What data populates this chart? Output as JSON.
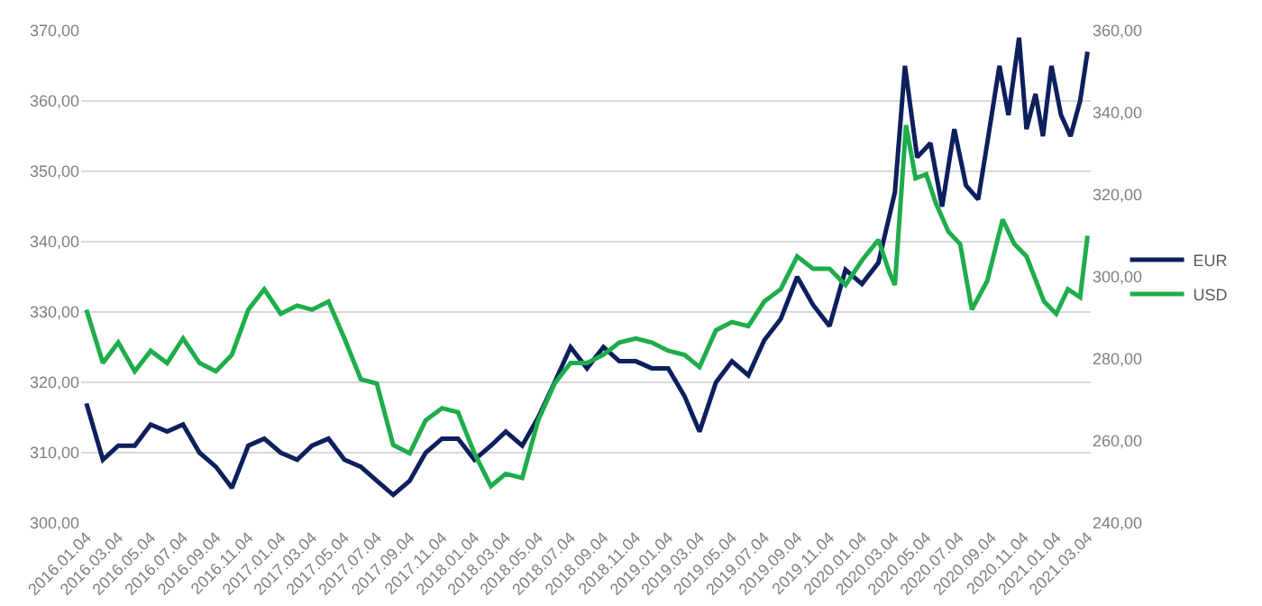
{
  "chart_data": {
    "type": "line",
    "series": [
      {
        "name": "EUR",
        "color": "#0d1f5c",
        "axis": "y",
        "x": [
          "2016-01-04",
          "2016-02-04",
          "2016-03-04",
          "2016-04-04",
          "2016-05-04",
          "2016-06-04",
          "2016-07-04",
          "2016-08-04",
          "2016-09-04",
          "2016-10-04",
          "2016-11-04",
          "2016-12-04",
          "2017-01-04",
          "2017-02-04",
          "2017-03-04",
          "2017-04-04",
          "2017-05-04",
          "2017-06-04",
          "2017-07-04",
          "2017-08-04",
          "2017-09-04",
          "2017-10-04",
          "2017-11-04",
          "2017-12-04",
          "2018-01-04",
          "2018-02-04",
          "2018-03-04",
          "2018-04-04",
          "2018-05-04",
          "2018-06-04",
          "2018-07-04",
          "2018-08-04",
          "2018-09-04",
          "2018-10-04",
          "2018-11-04",
          "2018-12-04",
          "2019-01-04",
          "2019-02-04",
          "2019-03-04",
          "2019-04-04",
          "2019-05-04",
          "2019-06-04",
          "2019-07-04",
          "2019-08-04",
          "2019-09-04",
          "2019-10-04",
          "2019-11-04",
          "2019-12-04",
          "2020-01-04",
          "2020-02-04",
          "2020-03-06",
          "2020-03-25",
          "2020-04-17",
          "2020-05-12",
          "2020-06-03",
          "2020-06-26",
          "2020-07-18",
          "2020-08-10",
          "2020-08-27",
          "2020-09-19",
          "2020-10-06",
          "2020-10-26",
          "2020-11-09",
          "2020-11-26",
          "2020-12-10",
          "2020-12-26",
          "2021-01-13",
          "2021-01-31",
          "2021-02-18",
          "2021-03-04"
        ],
        "values": [
          317,
          309,
          311,
          311,
          314,
          313,
          314,
          310,
          308,
          305,
          311,
          312,
          310,
          309,
          311,
          312,
          309,
          308,
          306,
          304,
          306,
          310,
          312,
          312,
          309,
          311,
          313,
          311,
          315,
          320,
          325,
          322,
          325,
          323,
          323,
          322,
          322,
          318,
          313,
          320,
          323,
          321,
          326,
          329,
          335,
          331,
          328,
          336,
          334,
          337,
          347,
          365,
          352,
          354,
          345,
          356,
          348,
          346,
          354,
          365,
          358,
          369,
          356,
          361,
          355,
          365,
          358,
          355,
          360,
          367
        ]
      },
      {
        "name": "USD",
        "color": "#1fad4b",
        "axis": "y2",
        "x": [
          "2016-01-04",
          "2016-02-04",
          "2016-03-04",
          "2016-04-04",
          "2016-05-04",
          "2016-06-04",
          "2016-07-04",
          "2016-08-04",
          "2016-09-04",
          "2016-10-04",
          "2016-11-04",
          "2016-12-04",
          "2017-01-04",
          "2017-02-04",
          "2017-03-04",
          "2017-04-04",
          "2017-05-04",
          "2017-06-04",
          "2017-07-04",
          "2017-08-04",
          "2017-09-04",
          "2017-10-04",
          "2017-11-04",
          "2017-12-04",
          "2018-01-04",
          "2018-02-04",
          "2018-03-04",
          "2018-04-04",
          "2018-05-04",
          "2018-06-04",
          "2018-07-04",
          "2018-08-04",
          "2018-09-04",
          "2018-10-04",
          "2018-11-04",
          "2018-12-04",
          "2019-01-04",
          "2019-02-04",
          "2019-03-04",
          "2019-04-04",
          "2019-05-04",
          "2019-06-04",
          "2019-07-04",
          "2019-08-04",
          "2019-09-04",
          "2019-10-04",
          "2019-11-04",
          "2019-12-04",
          "2020-01-04",
          "2020-02-04",
          "2020-02-25",
          "2020-03-06",
          "2020-03-27",
          "2020-04-14",
          "2020-05-04",
          "2020-05-22",
          "2020-06-15",
          "2020-07-07",
          "2020-07-29",
          "2020-08-27",
          "2020-09-25",
          "2020-10-17",
          "2020-11-09",
          "2020-12-12",
          "2021-01-04",
          "2021-01-26",
          "2021-02-18",
          "2021-03-04"
        ],
        "values": [
          292,
          279,
          284,
          277,
          282,
          279,
          285,
          279,
          277,
          281,
          292,
          297,
          291,
          293,
          292,
          294,
          285,
          275,
          274,
          259,
          257,
          265,
          268,
          267,
          257,
          249,
          252,
          251,
          265,
          274,
          279,
          279,
          281,
          284,
          285,
          284,
          282,
          281,
          278,
          287,
          289,
          288,
          294,
          297,
          305,
          302,
          302,
          298,
          304,
          309,
          301,
          298,
          337,
          324,
          325,
          318,
          311,
          308,
          292,
          299,
          314,
          308,
          305,
          294,
          291,
          297,
          295,
          310
        ]
      }
    ],
    "xlim": [
      "2015-12-25",
      "2021-03-10"
    ],
    "xticks": [
      {
        "value": "2016-01-04",
        "label": "2016.01.04"
      },
      {
        "value": "2016-03-04",
        "label": "2016.03.04"
      },
      {
        "value": "2016-05-04",
        "label": "2016.05.04"
      },
      {
        "value": "2016-07-04",
        "label": "2016.07.04"
      },
      {
        "value": "2016-09-04",
        "label": "2016.09.04"
      },
      {
        "value": "2016-11-04",
        "label": "2016.11.04"
      },
      {
        "value": "2017-01-04",
        "label": "2017.01.04"
      },
      {
        "value": "2017-03-04",
        "label": "2017.03.04"
      },
      {
        "value": "2017-05-04",
        "label": "2017.05.04"
      },
      {
        "value": "2017-07-04",
        "label": "2017.07.04"
      },
      {
        "value": "2017-09-04",
        "label": "2017.09.04"
      },
      {
        "value": "2017-11-04",
        "label": "2017.11.04"
      },
      {
        "value": "2018-01-04",
        "label": "2018.01.04"
      },
      {
        "value": "2018-03-04",
        "label": "2018.03.04"
      },
      {
        "value": "2018-05-04",
        "label": "2018.05.04"
      },
      {
        "value": "2018-07-04",
        "label": "2018.07.04"
      },
      {
        "value": "2018-09-04",
        "label": "2018.09.04"
      },
      {
        "value": "2018-11-04",
        "label": "2018.11.04"
      },
      {
        "value": "2019-01-04",
        "label": "2019.01.04"
      },
      {
        "value": "2019-03-04",
        "label": "2019.03.04"
      },
      {
        "value": "2019-05-04",
        "label": "2019.05.04"
      },
      {
        "value": "2019-07-04",
        "label": "2019.07.04"
      },
      {
        "value": "2019-09-04",
        "label": "2019.09.04"
      },
      {
        "value": "2019-11-04",
        "label": "2019.11.04"
      },
      {
        "value": "2020-01-04",
        "label": "2020.01.04"
      },
      {
        "value": "2020-03-04",
        "label": "2020.03.04"
      },
      {
        "value": "2020-05-04",
        "label": "2020.05.04"
      },
      {
        "value": "2020-07-04",
        "label": "2020.07.04"
      },
      {
        "value": "2020-09-04",
        "label": "2020.09.04"
      },
      {
        "value": "2020-11-04",
        "label": "2020.11.04"
      },
      {
        "value": "2021-01-04",
        "label": "2021.01.04"
      },
      {
        "value": "2021-03-04",
        "label": "2021.03.04"
      }
    ],
    "ylim": [
      300,
      370
    ],
    "yticks": [
      {
        "value": 300,
        "label": "300,00"
      },
      {
        "value": 310,
        "label": "310,00"
      },
      {
        "value": 320,
        "label": "320,00"
      },
      {
        "value": 330,
        "label": "330,00"
      },
      {
        "value": 340,
        "label": "340,00"
      },
      {
        "value": 350,
        "label": "350,00"
      },
      {
        "value": 360,
        "label": "360,00"
      },
      {
        "value": 370,
        "label": "370,00"
      }
    ],
    "y2lim": [
      240,
      360
    ],
    "y2ticks": [
      {
        "value": 240,
        "label": "240,00"
      },
      {
        "value": 260,
        "label": "260,00"
      },
      {
        "value": 280,
        "label": "280,00"
      },
      {
        "value": 300,
        "label": "300,00"
      },
      {
        "value": 320,
        "label": "320,00"
      },
      {
        "value": 340,
        "label": "340,00"
      },
      {
        "value": 360,
        "label": "360,00"
      }
    ],
    "grid": "y",
    "legend": "right",
    "marker": "none",
    "line_style": "solid"
  }
}
